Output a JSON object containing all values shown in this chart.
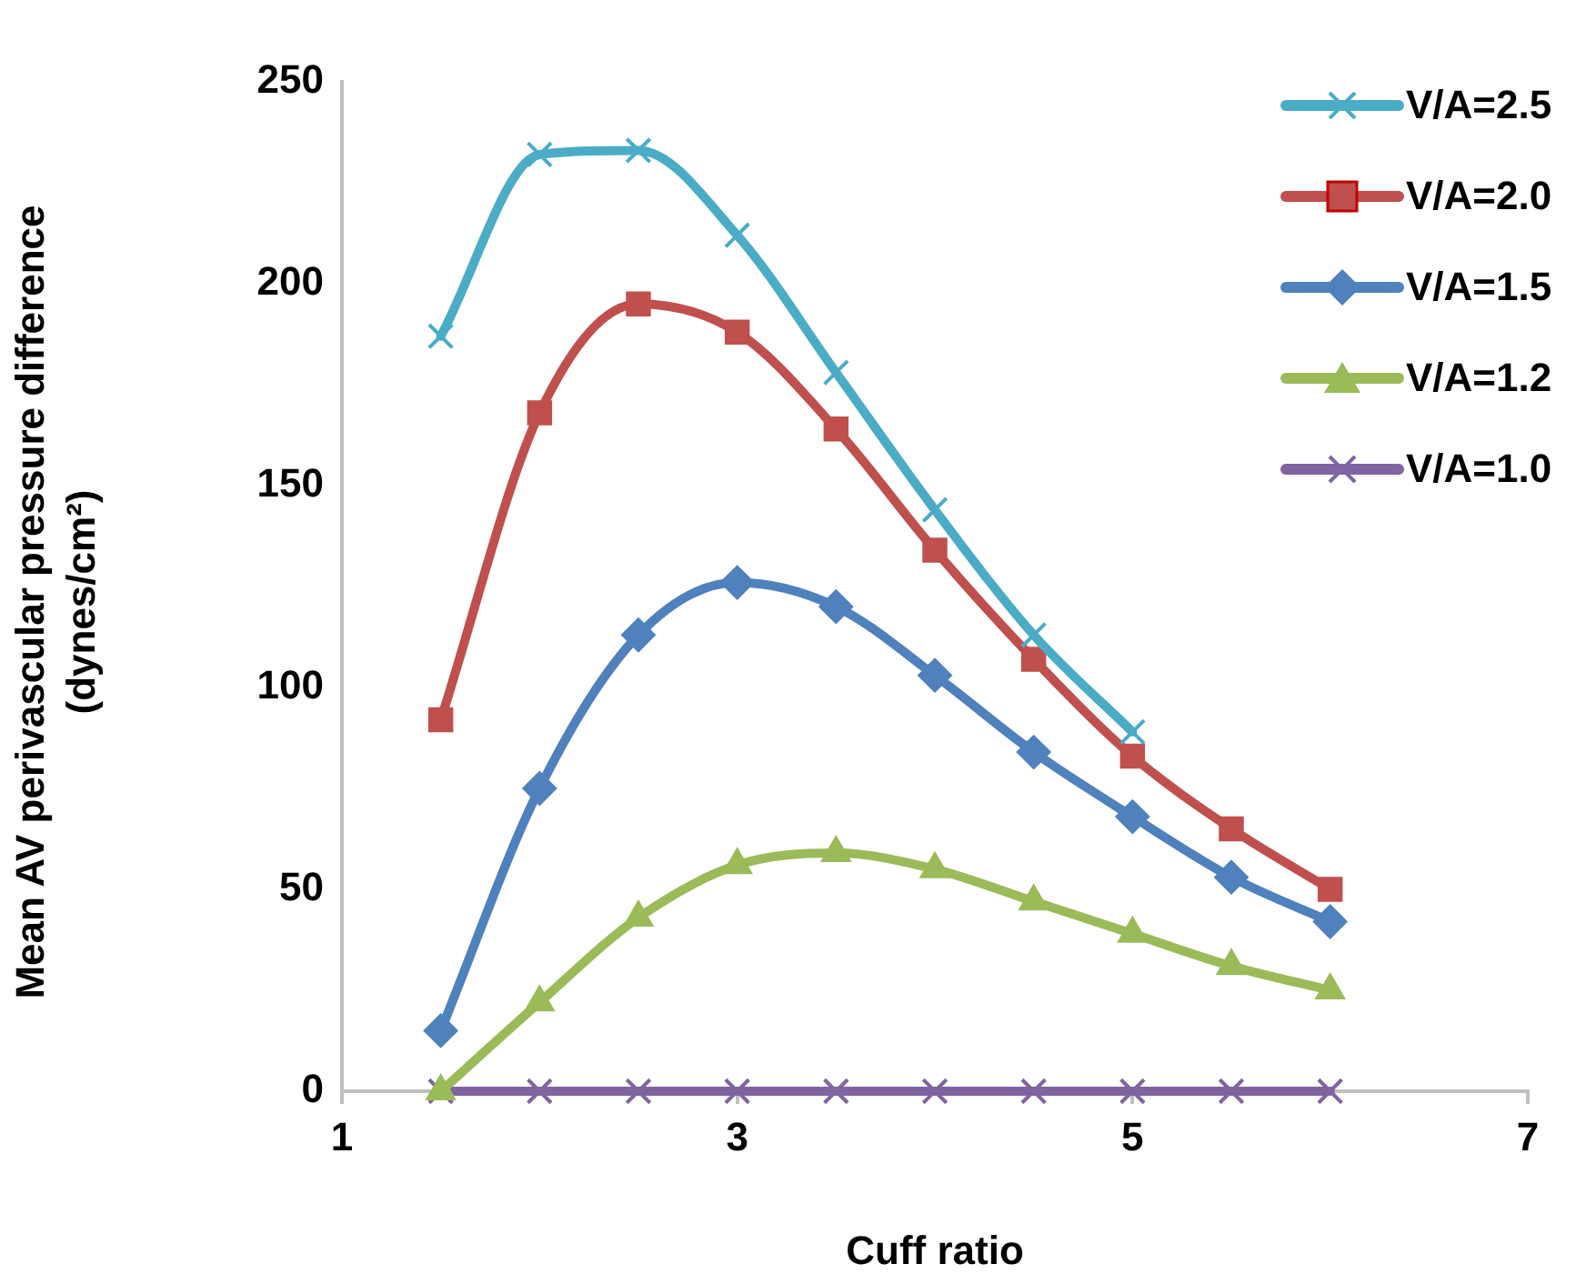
{
  "chart_data": {
    "type": "line",
    "xlabel": "Cuff ratio",
    "ylabel": "Mean AV perivascular pressure difference (dynes/cm²)",
    "x": [
      1.5,
      2,
      2.5,
      3,
      3.5,
      4,
      4.5,
      5,
      5.5,
      6
    ],
    "xlim": [
      1,
      7
    ],
    "xticks": [
      1,
      3,
      5,
      7
    ],
    "ylim": [
      0,
      250
    ],
    "yticks": [
      0,
      50,
      100,
      150,
      200,
      250
    ],
    "grid": false,
    "legend": "top right",
    "line_style": "solid",
    "series": [
      {
        "name": "V/A=2.5",
        "color": "#4bacc6",
        "marker": "cross",
        "values": [
          187,
          232,
          233,
          212,
          178,
          144,
          113,
          89,
          null,
          null
        ]
      },
      {
        "name": "V/A=2.0",
        "color": "#c0504d",
        "marker": "square",
        "values": [
          92,
          168,
          195,
          188,
          164,
          134,
          107,
          83,
          65,
          50
        ]
      },
      {
        "name": "V/A=1.5",
        "color": "#4f81bd",
        "marker": "diamond",
        "values": [
          15,
          75,
          113,
          126,
          120,
          103,
          84,
          68,
          53,
          42
        ]
      },
      {
        "name": "V/A=1.2",
        "color": "#9bbb59",
        "marker": "triangle",
        "values": [
          0,
          22,
          43,
          56,
          59,
          55,
          47,
          39,
          31,
          25
        ]
      },
      {
        "name": "V/A=1.0",
        "color": "#8064a2",
        "marker": "cross",
        "values": [
          0,
          0,
          0,
          0,
          0,
          0,
          0,
          0,
          0,
          0
        ]
      }
    ]
  }
}
